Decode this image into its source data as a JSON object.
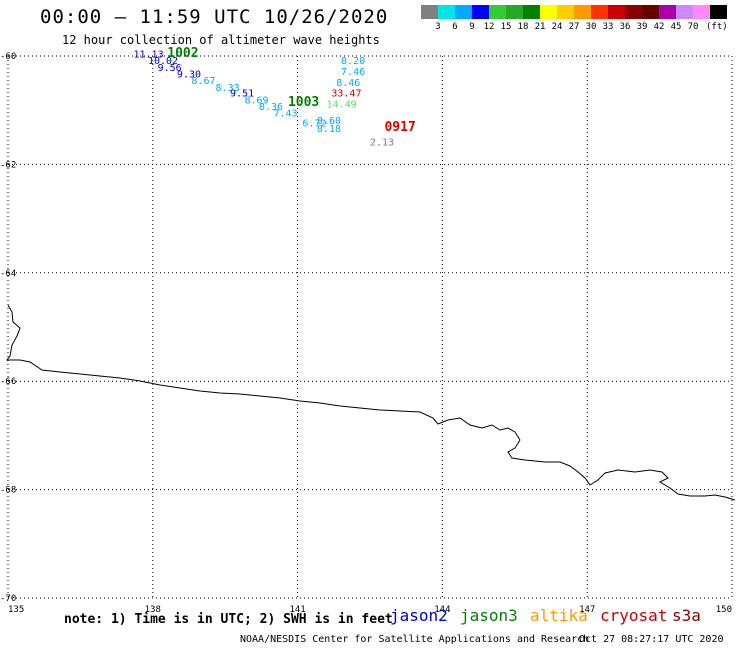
{
  "header": {
    "title": "00:00 – 11:59 UTC 10/26/2020",
    "subtitle": "12 hour collection of altimeter wave heights"
  },
  "scale": {
    "unit": "(ft)",
    "colors": [
      "#808080",
      "#00e5e5",
      "#00aaff",
      "#0000ff",
      "#33cc33",
      "#22aa22",
      "#008000",
      "#ffff00",
      "#ffcc00",
      "#ff9900",
      "#ff3300",
      "#cc0000",
      "#880000",
      "#660000",
      "#aa00aa",
      "#cc88ff",
      "#ff88ff",
      "#000000"
    ],
    "ticks": [
      "3",
      "6",
      "9",
      "12",
      "15",
      "18",
      "21",
      "24",
      "27",
      "30",
      "33",
      "36",
      "39",
      "42",
      "45",
      "70"
    ]
  },
  "map": {
    "lat_labels": [
      "-60",
      "-62",
      "-64",
      "-66",
      "-68",
      "-70"
    ],
    "lon_labels": [
      "135",
      "138",
      "141",
      "144",
      "147",
      "150"
    ],
    "coastline": "antarctic-coast"
  },
  "chart_data": {
    "type": "scatter",
    "x_axis": "longitude",
    "y_axis": "latitude",
    "xlim": [
      135,
      150
    ],
    "ylim": [
      -70,
      -60
    ],
    "wave_heights": [
      {
        "text": "11.13",
        "color": "#0000cc",
        "lon": 137.6,
        "lat": -60.03
      },
      {
        "text": "10.02",
        "color": "#0000cc",
        "lon": 137.9,
        "lat": -60.15
      },
      {
        "text": "9.56",
        "color": "#0000cc",
        "lon": 138.1,
        "lat": -60.28
      },
      {
        "text": "9.30",
        "color": "#0000cc",
        "lon": 138.5,
        "lat": -60.4
      },
      {
        "text": "8.67",
        "color": "#00aaff",
        "lon": 138.8,
        "lat": -60.52
      },
      {
        "text": "8.33",
        "color": "#00aaff",
        "lon": 139.3,
        "lat": -60.65
      },
      {
        "text": "9.51",
        "color": "#0000cc",
        "lon": 139.6,
        "lat": -60.75
      },
      {
        "text": "8.69",
        "color": "#00aaff",
        "lon": 139.9,
        "lat": -60.88
      },
      {
        "text": "8.36",
        "color": "#00aaff",
        "lon": 140.2,
        "lat": -61.0
      },
      {
        "text": "7.43",
        "color": "#00aaff",
        "lon": 140.5,
        "lat": -61.12
      },
      {
        "text": "6.72",
        "color": "#00aaff",
        "lon": 141.1,
        "lat": -61.3
      },
      {
        "text": "8.20",
        "color": "#00aaff",
        "lon": 141.9,
        "lat": -60.15
      },
      {
        "text": "7.46",
        "color": "#00aaff",
        "lon": 141.9,
        "lat": -60.35
      },
      {
        "text": "8.46",
        "color": "#00aaff",
        "lon": 141.8,
        "lat": -60.55
      },
      {
        "text": "33.47",
        "color": "#cc0000",
        "lon": 141.7,
        "lat": -60.75
      },
      {
        "text": "14.49",
        "color": "#66dd66",
        "lon": 141.6,
        "lat": -60.95
      },
      {
        "text": "8.60",
        "color": "#00aaff",
        "lon": 141.4,
        "lat": -61.25
      },
      {
        "text": "8.18",
        "color": "#00aaff",
        "lon": 141.4,
        "lat": -61.4
      },
      {
        "text": "2.13",
        "color": "#808080",
        "lon": 142.5,
        "lat": -61.65
      }
    ],
    "pressure_labels": [
      {
        "text": "1002",
        "color": "#008000",
        "lon": 138.3,
        "lat": -60.02
      },
      {
        "text": "1003",
        "color": "#008000",
        "lon": 140.8,
        "lat": -60.92
      },
      {
        "text": "0917",
        "color": "#dd0000",
        "lon": 142.8,
        "lat": -61.38
      }
    ]
  },
  "footer": {
    "note": "note: 1) Time is in UTC; 2) SWH is in feet",
    "satellites": [
      {
        "name": "jason2",
        "color": "#0000cc"
      },
      {
        "name": "jason3",
        "color": "#008000"
      },
      {
        "name": "altika",
        "color": "#ff9900"
      },
      {
        "name": "cryosat",
        "color": "#cc0000"
      },
      {
        "name": "s3a",
        "color": "#880000"
      }
    ],
    "credit": "NOAA/NESDIS Center for Satellite Applications and Research",
    "timestamp": "Oct 27 08:27:17 UTC 2020"
  }
}
